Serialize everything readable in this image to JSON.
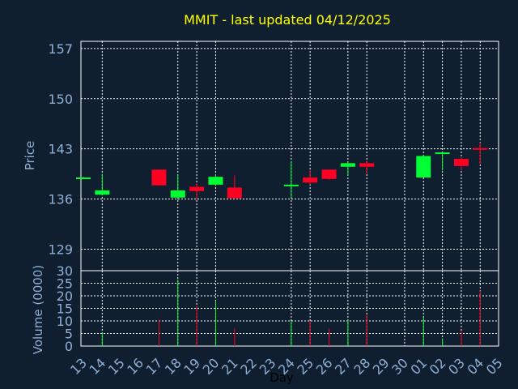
{
  "chart_data": [
    {
      "type": "candlestick",
      "title": "MMIT - last updated 04/12/2025",
      "ylabel": "Price",
      "yticks": [
        129,
        136,
        143,
        150,
        157
      ],
      "ylim": [
        126,
        158
      ],
      "grid": true,
      "categories": [
        "13",
        "14",
        "15",
        "16",
        "17",
        "18",
        "19",
        "20",
        "21",
        "22",
        "23",
        "24",
        "25",
        "26",
        "27",
        "28",
        "29",
        "30",
        "01",
        "02",
        "03",
        "04",
        "05"
      ],
      "candles": [
        {
          "x": "13",
          "open": 138.9,
          "high": 139.1,
          "low": 138.8,
          "close": 139.0
        },
        {
          "x": "14",
          "open": 136.6,
          "high": 139.5,
          "low": 136.5,
          "close": 137.2
        },
        {
          "x": "17",
          "open": 140.1,
          "high": 140.1,
          "low": 137.9,
          "close": 137.9
        },
        {
          "x": "18",
          "open": 136.2,
          "high": 139.4,
          "low": 135.9,
          "close": 137.2
        },
        {
          "x": "19",
          "open": 137.7,
          "high": 138.2,
          "low": 135.9,
          "close": 137.1
        },
        {
          "x": "20",
          "open": 138.0,
          "high": 139.4,
          "low": 137.8,
          "close": 139.1
        },
        {
          "x": "21",
          "open": 137.6,
          "high": 139.3,
          "low": 136.1,
          "close": 136.1
        },
        {
          "x": "24",
          "open": 137.8,
          "high": 141.3,
          "low": 136.2,
          "close": 138.0
        },
        {
          "x": "25",
          "open": 139.0,
          "high": 140.1,
          "low": 138.0,
          "close": 138.3
        },
        {
          "x": "26",
          "open": 140.1,
          "high": 140.1,
          "low": 138.7,
          "close": 138.8
        },
        {
          "x": "27",
          "open": 140.5,
          "high": 141.1,
          "low": 139.3,
          "close": 141.0
        },
        {
          "x": "28",
          "open": 141.0,
          "high": 141.3,
          "low": 139.5,
          "close": 140.5
        },
        {
          "x": "01",
          "open": 139.0,
          "high": 142.1,
          "low": 139.0,
          "close": 142.0
        },
        {
          "x": "02",
          "open": 142.3,
          "high": 142.5,
          "low": 140.0,
          "close": 142.5
        },
        {
          "x": "03",
          "open": 141.6,
          "high": 141.8,
          "low": 140.0,
          "close": 140.6
        },
        {
          "x": "04",
          "open": 143.1,
          "high": 143.9,
          "low": 140.9,
          "close": 142.9
        }
      ],
      "up_color": "#00ff33",
      "down_color": "#ff0022"
    },
    {
      "type": "bar",
      "ylabel": "Volume (0000)",
      "xlabel": "Day",
      "yticks": [
        0,
        5,
        10,
        15,
        20,
        25,
        30
      ],
      "ylim": [
        0,
        30
      ],
      "categories": [
        "13",
        "14",
        "15",
        "16",
        "17",
        "18",
        "19",
        "20",
        "21",
        "22",
        "23",
        "24",
        "25",
        "26",
        "27",
        "28",
        "29",
        "30",
        "01",
        "02",
        "03",
        "04",
        "05"
      ],
      "bars": [
        {
          "x": "14",
          "value": 5.5,
          "direction": "up"
        },
        {
          "x": "17",
          "value": 10.5,
          "direction": "down"
        },
        {
          "x": "18",
          "value": 26.5,
          "direction": "up"
        },
        {
          "x": "19",
          "value": 16.0,
          "direction": "down"
        },
        {
          "x": "20",
          "value": 18.0,
          "direction": "up"
        },
        {
          "x": "21",
          "value": 7.0,
          "direction": "down"
        },
        {
          "x": "24",
          "value": 10.0,
          "direction": "up"
        },
        {
          "x": "25",
          "value": 10.0,
          "direction": "down"
        },
        {
          "x": "26",
          "value": 7.0,
          "direction": "down"
        },
        {
          "x": "27",
          "value": 10.5,
          "direction": "up"
        },
        {
          "x": "28",
          "value": 12.5,
          "direction": "down"
        },
        {
          "x": "01",
          "value": 11.5,
          "direction": "up"
        },
        {
          "x": "02",
          "value": 3.0,
          "direction": "up"
        },
        {
          "x": "03",
          "value": 6.0,
          "direction": "down"
        },
        {
          "x": "04",
          "value": 22.0,
          "direction": "down"
        }
      ]
    }
  ],
  "colors": {
    "background": "#0f1f2f",
    "plot_border": "#ffffff",
    "grid": "#ffffff",
    "tick_text": "#8fb0d6",
    "title_text": "#ffff00",
    "xlabel_text": "#000000"
  }
}
